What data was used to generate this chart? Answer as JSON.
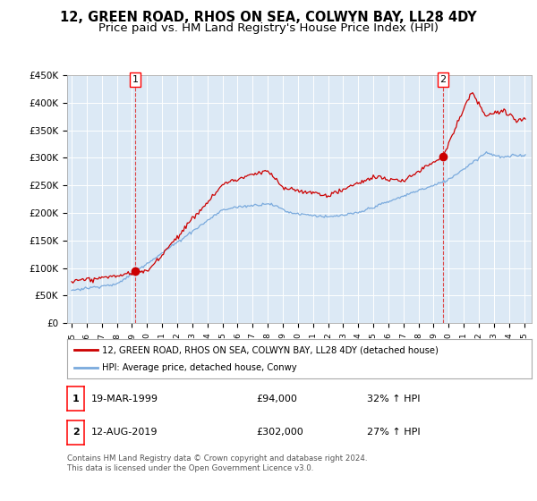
{
  "title": "12, GREEN ROAD, RHOS ON SEA, COLWYN BAY, LL28 4DY",
  "subtitle": "Price paid vs. HM Land Registry's House Price Index (HPI)",
  "ylim": [
    0,
    450000
  ],
  "yticks": [
    0,
    50000,
    100000,
    150000,
    200000,
    250000,
    300000,
    350000,
    400000,
    450000
  ],
  "ytick_labels": [
    "£0",
    "£50K",
    "£100K",
    "£150K",
    "£200K",
    "£250K",
    "£300K",
    "£350K",
    "£400K",
    "£450K"
  ],
  "xlim_left": 1994.7,
  "xlim_right": 2025.5,
  "background_color": "#ffffff",
  "plot_bg_color": "#dce9f5",
  "grid_color": "#ffffff",
  "red_color": "#cc0000",
  "blue_color": "#7aaadd",
  "dashed_line_color": "#dd4444",
  "sale1_year": 1999.21,
  "sale1_price": 94000,
  "sale2_year": 2019.62,
  "sale2_price": 302000,
  "legend_label1": "12, GREEN ROAD, RHOS ON SEA, COLWYN BAY, LL28 4DY (detached house)",
  "legend_label2": "HPI: Average price, detached house, Conwy",
  "footer": "Contains HM Land Registry data © Crown copyright and database right 2024.\nThis data is licensed under the Open Government Licence v3.0.",
  "title_fontsize": 10.5,
  "subtitle_fontsize": 9.5,
  "annotation_table_row1": [
    "1",
    "19-MAR-1999",
    "£94,000",
    "32% ↑ HPI"
  ],
  "annotation_table_row2": [
    "2",
    "12-AUG-2019",
    "£302,000",
    "27% ↑ HPI"
  ]
}
